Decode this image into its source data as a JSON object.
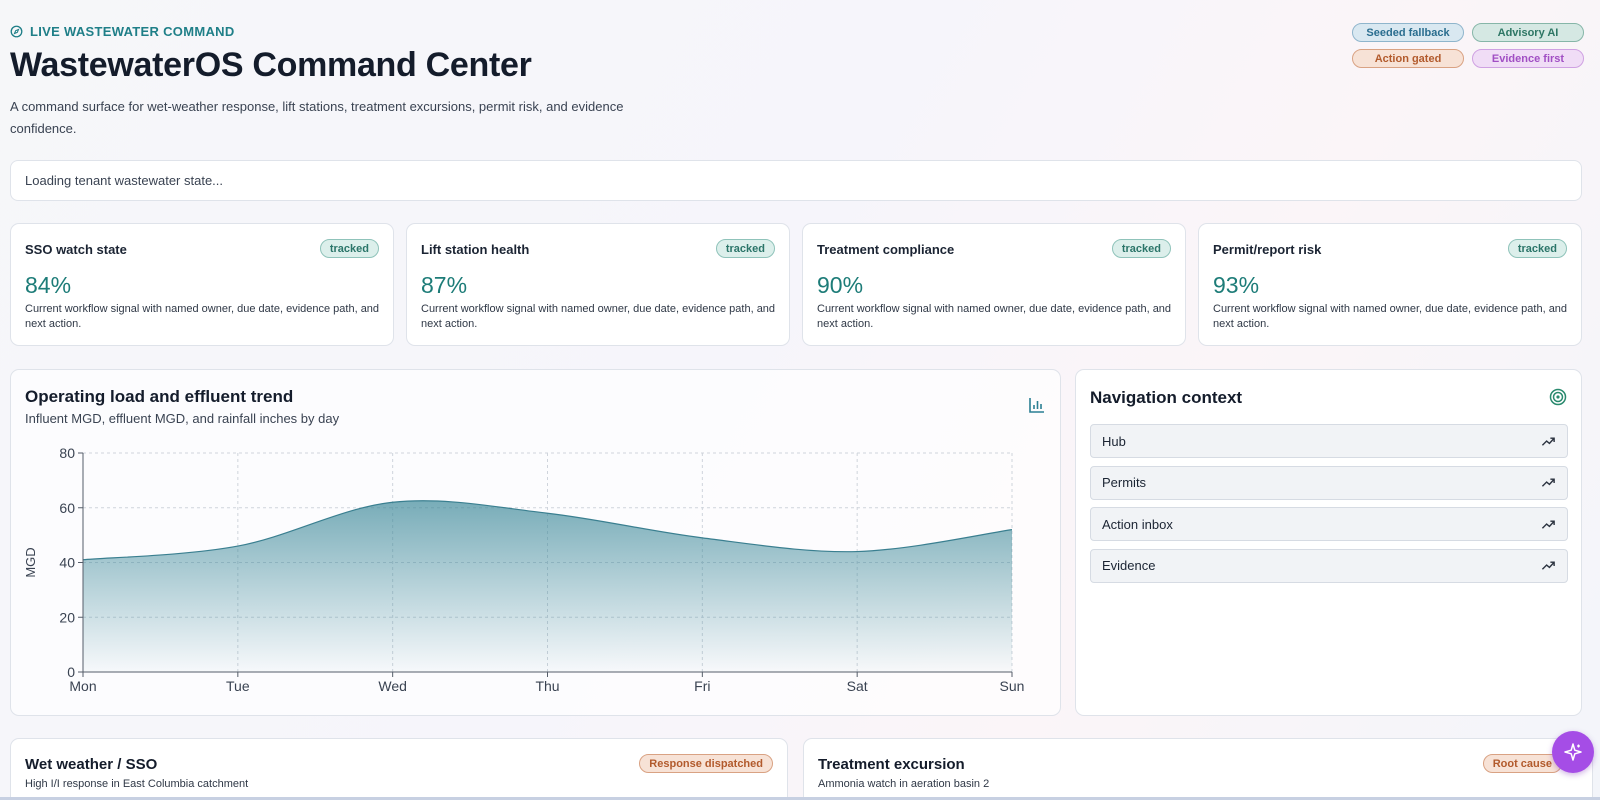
{
  "header": {
    "eyebrow": "LIVE WASTEWATER COMMAND",
    "title": "WastewaterOS Command Center",
    "subtitle": "A command surface for wet-weather response, lift stations, treatment excursions, permit risk, and evidence confidence.",
    "badges": [
      "Seeded fallback",
      "Advisory AI",
      "Action gated",
      "Evidence first"
    ]
  },
  "status": {
    "loading": "Loading tenant wastewater state..."
  },
  "kpis": [
    {
      "title": "SSO watch state",
      "pill": "tracked",
      "value": "84%",
      "desc": "Current workflow signal with named owner, due date, evidence path, and next action."
    },
    {
      "title": "Lift station health",
      "pill": "tracked",
      "value": "87%",
      "desc": "Current workflow signal with named owner, due date, evidence path, and next action."
    },
    {
      "title": "Treatment compliance",
      "pill": "tracked",
      "value": "90%",
      "desc": "Current workflow signal with named owner, due date, evidence path, and next action."
    },
    {
      "title": "Permit/report risk",
      "pill": "tracked",
      "value": "93%",
      "desc": "Current workflow signal with named owner, due date, evidence path, and next action."
    }
  ],
  "chart_panel": {
    "title": "Operating load and effluent trend",
    "subtitle": "Influent MGD, effluent MGD, and rainfall inches by day",
    "icon": "bar-chart-icon"
  },
  "chart_data": {
    "type": "area",
    "x": [
      "Mon",
      "Tue",
      "Wed",
      "Thu",
      "Fri",
      "Sat",
      "Sun"
    ],
    "series": [
      {
        "values": [
          41,
          46,
          62,
          58,
          49,
          44,
          52
        ]
      }
    ],
    "ylabel": "MGD",
    "ylim": [
      0,
      80
    ],
    "yticks": [
      0,
      20,
      40,
      60,
      80
    ],
    "grid": true,
    "color": "#3f8a9a"
  },
  "navigation": {
    "title": "Navigation context",
    "icon": "target-icon",
    "items": [
      "Hub",
      "Permits",
      "Action inbox",
      "Evidence"
    ]
  },
  "bottom_cards": [
    {
      "title": "Wet weather / SSO",
      "sub": "High I/I response in East Columbia catchment",
      "pill": "Response dispatched"
    },
    {
      "title": "Treatment excursion",
      "sub": "Ammonia watch in aeration basin 2",
      "pill": "Root cause"
    }
  ],
  "assistant": {
    "icon": "sparkle-icon"
  },
  "colors": {
    "accent": "#1f7f88",
    "fab": "#a54de6"
  }
}
